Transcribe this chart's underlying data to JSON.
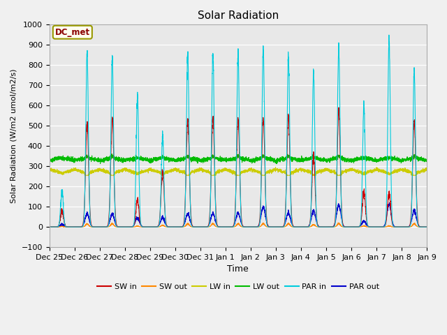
{
  "title": "Solar Radiation",
  "ylabel": "Solar Radiation (W/m2 umol/m2/s)",
  "xlabel": "Time",
  "annotation": "DC_met",
  "ylim": [
    -100,
    1000
  ],
  "fig_bg_color": "#f0f0f0",
  "plot_bg_color": "#e8e8e8",
  "colors": {
    "SW_in": "#cc0000",
    "SW_out": "#ff8800",
    "LW_in": "#cccc00",
    "LW_out": "#00bb00",
    "PAR_in": "#00ccdd",
    "PAR_out": "#0000cc"
  },
  "legend_labels": [
    "SW in",
    "SW out",
    "LW in",
    "LW out",
    "PAR in",
    "PAR out"
  ],
  "num_days": 15,
  "pts_per_day": 288,
  "tick_labels": [
    "Dec 25",
    "Dec 26",
    "Dec 27",
    "Dec 28",
    "Dec 29",
    "Dec 30",
    "Dec 31",
    "Jan 1",
    "Jan 2",
    "Jan 3",
    "Jan 4",
    "Jan 5",
    "Jan 6",
    "Jan 7",
    "Jan 8",
    "Jan 9"
  ]
}
